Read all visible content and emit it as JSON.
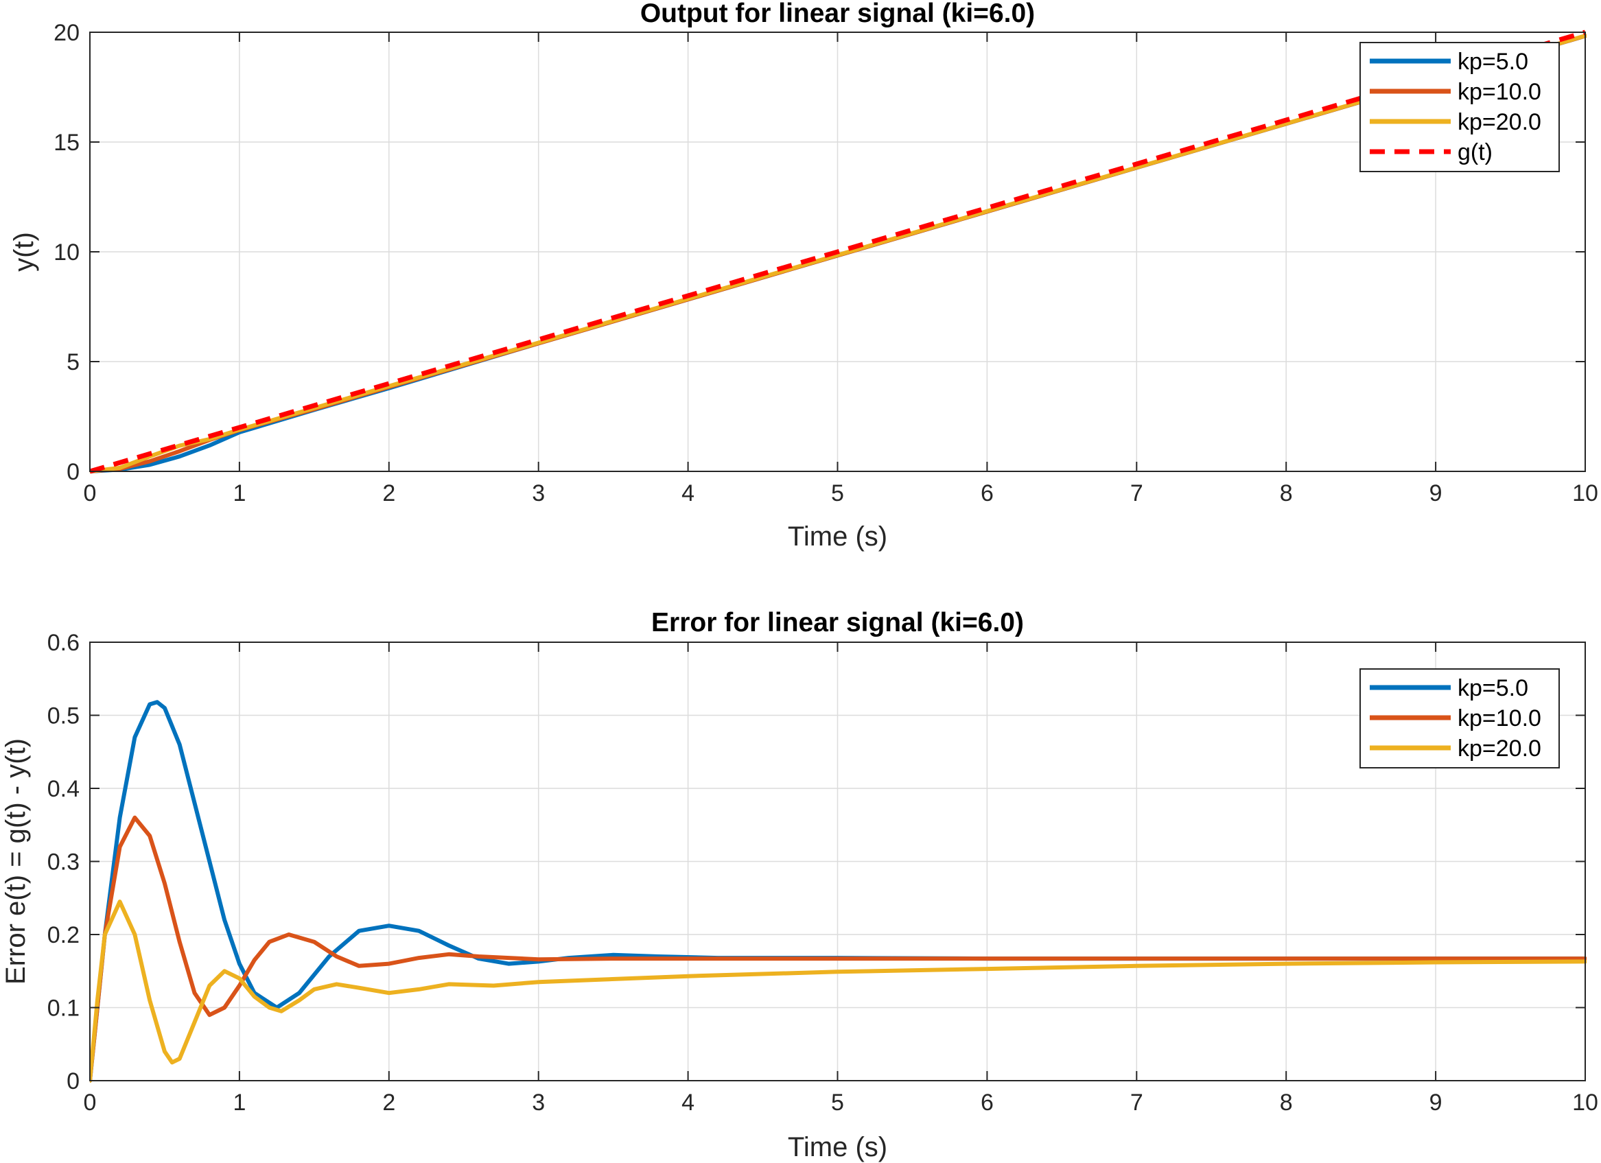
{
  "chart_data": [
    {
      "type": "line",
      "title": "Output for linear signal (ki=6.0)",
      "xlabel": "Time (s)",
      "ylabel": "y(t)",
      "xlim": [
        0,
        10
      ],
      "ylim": [
        0,
        20
      ],
      "xticks": [
        0,
        1,
        2,
        3,
        4,
        5,
        6,
        7,
        8,
        9,
        10
      ],
      "yticks": [
        0,
        5,
        10,
        15,
        20
      ],
      "grid": true,
      "legend_position": "top-right",
      "series": [
        {
          "name": "kp=5.0",
          "color": "#0072BD",
          "style": "solid",
          "x": [
            0,
            0.2,
            0.4,
            0.6,
            0.8,
            1,
            1.5,
            2,
            3,
            4,
            5,
            6,
            7,
            8,
            9,
            10
          ],
          "y": [
            0,
            0.08,
            0.3,
            0.68,
            1.18,
            1.78,
            2.8,
            3.79,
            5.83,
            7.83,
            9.83,
            11.83,
            13.83,
            15.83,
            17.83,
            19.83
          ]
        },
        {
          "name": "kp=10.0",
          "color": "#D95319",
          "style": "solid",
          "x": [
            0,
            0.2,
            0.4,
            0.6,
            0.8,
            1,
            1.5,
            2,
            3,
            4,
            5,
            6,
            7,
            8,
            9,
            10
          ],
          "y": [
            0,
            0.12,
            0.46,
            0.92,
            1.43,
            1.88,
            2.83,
            3.84,
            5.83,
            7.83,
            9.83,
            11.83,
            13.83,
            15.83,
            17.83,
            19.83
          ]
        },
        {
          "name": "kp=20.0",
          "color": "#EDB120",
          "style": "solid",
          "x": [
            0,
            0.2,
            0.4,
            0.6,
            0.8,
            1,
            1.5,
            2,
            3,
            4,
            5,
            6,
            7,
            8,
            9,
            10
          ],
          "y": [
            0,
            0.16,
            0.68,
            1.17,
            1.47,
            1.9,
            2.88,
            3.88,
            5.86,
            7.86,
            9.85,
            11.85,
            13.84,
            15.84,
            17.84,
            19.84
          ]
        },
        {
          "name": "g(t)",
          "color": "#FF0000",
          "style": "dashed",
          "x": [
            0,
            10
          ],
          "y": [
            0,
            20
          ]
        }
      ]
    },
    {
      "type": "line",
      "title": "Error for linear signal (ki=6.0)",
      "xlabel": "Time (s)",
      "ylabel": "Error e(t) = g(t) - y(t)",
      "xlim": [
        0,
        10
      ],
      "ylim": [
        0,
        0.6
      ],
      "xticks": [
        0,
        1,
        2,
        3,
        4,
        5,
        6,
        7,
        8,
        9,
        10
      ],
      "yticks": [
        0,
        0.1,
        0.2,
        0.3,
        0.4,
        0.5,
        0.6
      ],
      "grid": true,
      "legend_position": "top-right",
      "series": [
        {
          "name": "kp=5.0",
          "color": "#0072BD",
          "style": "solid",
          "x": [
            0,
            0.1,
            0.2,
            0.3,
            0.4,
            0.45,
            0.5,
            0.6,
            0.7,
            0.8,
            0.9,
            1.0,
            1.1,
            1.25,
            1.4,
            1.6,
            1.8,
            2.0,
            2.2,
            2.4,
            2.6,
            2.8,
            3.0,
            3.2,
            3.5,
            3.8,
            4.2,
            5,
            6,
            7,
            8,
            9,
            10
          ],
          "y": [
            0,
            0.2,
            0.36,
            0.47,
            0.515,
            0.518,
            0.51,
            0.46,
            0.38,
            0.3,
            0.22,
            0.16,
            0.12,
            0.1,
            0.12,
            0.17,
            0.205,
            0.212,
            0.205,
            0.185,
            0.167,
            0.16,
            0.163,
            0.168,
            0.172,
            0.17,
            0.168,
            0.168,
            0.167,
            0.167,
            0.167,
            0.167,
            0.167
          ]
        },
        {
          "name": "kp=10.0",
          "color": "#D95319",
          "style": "solid",
          "x": [
            0,
            0.05,
            0.1,
            0.2,
            0.3,
            0.4,
            0.5,
            0.6,
            0.7,
            0.8,
            0.9,
            1.0,
            1.1,
            1.2,
            1.33,
            1.5,
            1.65,
            1.8,
            2.0,
            2.2,
            2.4,
            2.6,
            3.0,
            3.5,
            4,
            5,
            6,
            7,
            8,
            9,
            10
          ],
          "y": [
            0,
            0.1,
            0.2,
            0.32,
            0.36,
            0.335,
            0.27,
            0.19,
            0.12,
            0.09,
            0.1,
            0.13,
            0.165,
            0.19,
            0.2,
            0.19,
            0.17,
            0.157,
            0.16,
            0.168,
            0.173,
            0.17,
            0.166,
            0.167,
            0.167,
            0.167,
            0.167,
            0.167,
            0.167,
            0.167,
            0.167
          ]
        },
        {
          "name": "kp=20.0",
          "color": "#EDB120",
          "style": "solid",
          "x": [
            0,
            0.05,
            0.1,
            0.2,
            0.3,
            0.4,
            0.5,
            0.55,
            0.6,
            0.7,
            0.8,
            0.9,
            1.0,
            1.1,
            1.2,
            1.28,
            1.4,
            1.5,
            1.65,
            1.8,
            2.0,
            2.2,
            2.4,
            2.7,
            3.0,
            4,
            5,
            6,
            7,
            8,
            9,
            10
          ],
          "y": [
            0,
            0.11,
            0.2,
            0.245,
            0.2,
            0.11,
            0.04,
            0.025,
            0.03,
            0.08,
            0.13,
            0.15,
            0.14,
            0.115,
            0.1,
            0.095,
            0.11,
            0.125,
            0.132,
            0.127,
            0.12,
            0.125,
            0.132,
            0.13,
            0.135,
            0.143,
            0.149,
            0.153,
            0.157,
            0.16,
            0.162,
            0.163
          ]
        }
      ]
    }
  ]
}
